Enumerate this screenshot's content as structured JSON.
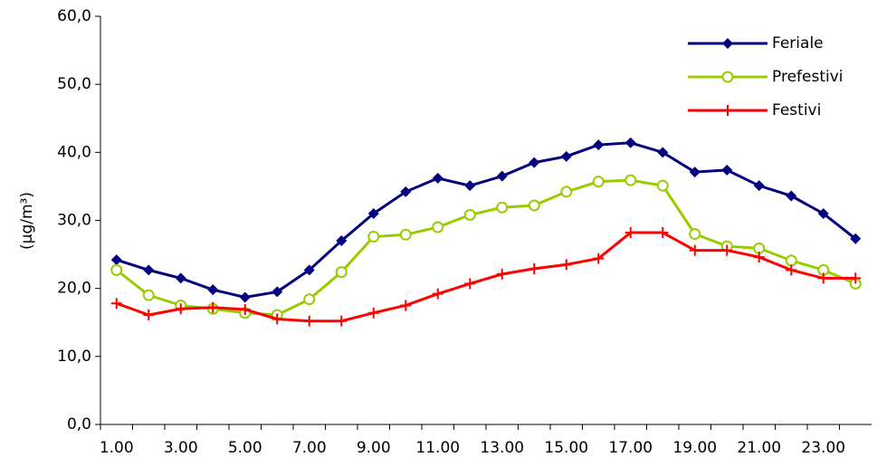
{
  "chart_data": {
    "type": "line",
    "y_label": "(µg/m³)",
    "categories": [
      "1.00",
      null,
      "3.00",
      null,
      "5.00",
      null,
      "7.00",
      null,
      "9.00",
      null,
      "11.00",
      null,
      "13.00",
      null,
      "15.00",
      null,
      "17.00",
      null,
      "19.00",
      null,
      "21.00",
      null,
      "23.00",
      null
    ],
    "series": [
      {
        "name": "Feriale",
        "color": "#000080",
        "marker": "diamond",
        "values": [
          24.2,
          22.7,
          21.5,
          19.8,
          18.7,
          19.5,
          22.7,
          27.0,
          31.0,
          34.2,
          36.2,
          35.1,
          36.5,
          38.5,
          39.4,
          41.1,
          41.4,
          40.0,
          37.1,
          37.4,
          35.1,
          33.6,
          31.0,
          27.3
        ]
      },
      {
        "name": "Prefestivi",
        "color": "#99cc00",
        "marker": "circle",
        "values": [
          22.7,
          19.0,
          17.5,
          17.0,
          16.4,
          16.1,
          18.4,
          22.4,
          27.6,
          27.9,
          29.0,
          30.8,
          31.9,
          32.2,
          34.2,
          35.7,
          35.9,
          35.1,
          28.0,
          26.2,
          25.9,
          24.1,
          22.7,
          20.7
        ]
      },
      {
        "name": "Festivi",
        "color": "#ff0000",
        "marker": "plus",
        "values": [
          17.8,
          16.1,
          17.0,
          17.2,
          16.9,
          15.5,
          15.2,
          15.2,
          16.4,
          17.5,
          19.2,
          20.7,
          22.1,
          22.9,
          23.5,
          24.4,
          28.2,
          28.2,
          25.6,
          25.6,
          24.6,
          22.7,
          21.5,
          21.5
        ]
      }
    ],
    "ylim": [
      0,
      60
    ],
    "yticks": [
      {
        "value": 0,
        "label": "0,0"
      },
      {
        "value": 10,
        "label": "10,0"
      },
      {
        "value": 20,
        "label": "20,0"
      },
      {
        "value": 30,
        "label": "30,0"
      },
      {
        "value": 40,
        "label": "40,0"
      },
      {
        "value": 50,
        "label": "50,0"
      },
      {
        "value": 60,
        "label": "60,0"
      }
    ],
    "legend": "top-right"
  }
}
